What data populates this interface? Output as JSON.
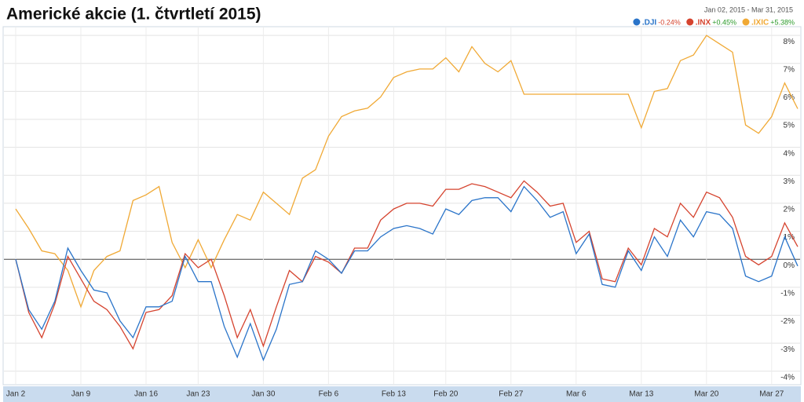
{
  "chart_data": {
    "type": "line",
    "title": "Americké akcie (1. čtvrtletí 2015)",
    "subtitle": "Jan 02, 2015  -  Mar 31, 2015",
    "categories": [
      "Jan 2",
      null,
      null,
      null,
      null,
      "Jan 9",
      null,
      null,
      null,
      null,
      "Jan 16",
      null,
      null,
      null,
      "Jan 23",
      null,
      null,
      null,
      null,
      "Jan 30",
      null,
      null,
      null,
      null,
      "Feb 6",
      null,
      null,
      null,
      null,
      "Feb 13",
      null,
      null,
      null,
      "Feb 20",
      null,
      null,
      null,
      null,
      "Feb 27",
      null,
      null,
      null,
      null,
      "Mar 6",
      null,
      null,
      null,
      null,
      "Mar 13",
      null,
      null,
      null,
      null,
      "Mar 20",
      null,
      null,
      null,
      null,
      "Mar 27",
      null,
      null
    ],
    "series": [
      {
        "name": ".DJI",
        "color": "#2a74c9",
        "change": {
          "value": -0.24,
          "label": "-0.24%"
        },
        "values": [
          0.0,
          -1.8,
          -2.5,
          -1.5,
          0.4,
          -0.4,
          -1.1,
          -1.2,
          -2.2,
          -2.8,
          -1.7,
          -1.7,
          -1.5,
          0.1,
          -0.8,
          -0.8,
          -2.4,
          -3.5,
          -2.3,
          -3.6,
          -2.5,
          -0.9,
          -0.8,
          0.3,
          0.0,
          -0.5,
          0.3,
          0.3,
          0.8,
          1.1,
          1.2,
          1.1,
          0.9,
          1.8,
          1.6,
          2.1,
          2.2,
          2.2,
          1.7,
          2.6,
          2.1,
          1.5,
          1.7,
          0.2,
          0.9,
          -0.9,
          -1.0,
          0.3,
          -0.4,
          0.8,
          0.1,
          1.4,
          0.8,
          1.7,
          1.6,
          1.1,
          -0.6,
          -0.8,
          -0.6,
          0.8,
          -0.24
        ]
      },
      {
        "name": ".INX",
        "color": "#d5432e",
        "change": {
          "value": 0.45,
          "label": "+0.45%"
        },
        "values": [
          0.0,
          -1.9,
          -2.8,
          -1.6,
          0.1,
          -0.7,
          -1.5,
          -1.8,
          -2.4,
          -3.2,
          -1.9,
          -1.8,
          -1.3,
          0.2,
          -0.3,
          0.0,
          -1.3,
          -2.8,
          -1.8,
          -3.1,
          -1.7,
          -0.4,
          -0.8,
          0.1,
          -0.1,
          -0.5,
          0.4,
          0.4,
          1.4,
          1.8,
          2.0,
          2.0,
          1.9,
          2.5,
          2.5,
          2.7,
          2.6,
          2.4,
          2.2,
          2.8,
          2.4,
          1.9,
          2.0,
          0.6,
          1.0,
          -0.7,
          -0.8,
          0.4,
          -0.2,
          1.1,
          0.8,
          2.0,
          1.5,
          2.4,
          2.2,
          1.5,
          0.1,
          -0.2,
          0.1,
          1.3,
          0.45
        ]
      },
      {
        "name": ".IXIC",
        "color": "#f0a935",
        "change": {
          "value": 5.38,
          "label": "+5.38%"
        },
        "values": [
          1.8,
          1.1,
          0.3,
          0.2,
          -0.4,
          -1.7,
          -0.4,
          0.1,
          0.3,
          2.1,
          2.3,
          2.6,
          0.6,
          -0.3,
          0.7,
          -0.3,
          0.7,
          1.6,
          1.4,
          2.4,
          2.0,
          1.6,
          2.9,
          3.2,
          4.4,
          5.1,
          5.3,
          5.4,
          5.8,
          6.5,
          6.7,
          6.8,
          6.8,
          7.2,
          6.7,
          7.6,
          7.0,
          6.7,
          7.1,
          5.9,
          5.9,
          5.9,
          5.9,
          5.9,
          5.9,
          5.9,
          5.9,
          5.9,
          4.7,
          6.0,
          6.1,
          7.1,
          7.3,
          8.0,
          7.7,
          7.4,
          4.8,
          4.5,
          5.1,
          6.3,
          5.38
        ]
      }
    ],
    "ylim": [
      -4.4,
      8.2
    ],
    "yticks": [
      {
        "value": 8,
        "label": "8%"
      },
      {
        "value": 7,
        "label": "7%"
      },
      {
        "value": 6,
        "label": "6%"
      },
      {
        "value": 5,
        "label": "5%"
      },
      {
        "value": 4,
        "label": "4%"
      },
      {
        "value": 3,
        "label": "3%"
      },
      {
        "value": 2,
        "label": "2%"
      },
      {
        "value": 1,
        "label": "1%"
      },
      {
        "value": 0,
        "label": "0%"
      },
      {
        "value": -1,
        "label": "-1%"
      },
      {
        "value": -2,
        "label": "-2%"
      },
      {
        "value": -3,
        "label": "-3%"
      },
      {
        "value": -4,
        "label": "-4%"
      }
    ],
    "grid": true,
    "positive_color": "#2a9a2a",
    "negative_color": "#d5432e"
  }
}
